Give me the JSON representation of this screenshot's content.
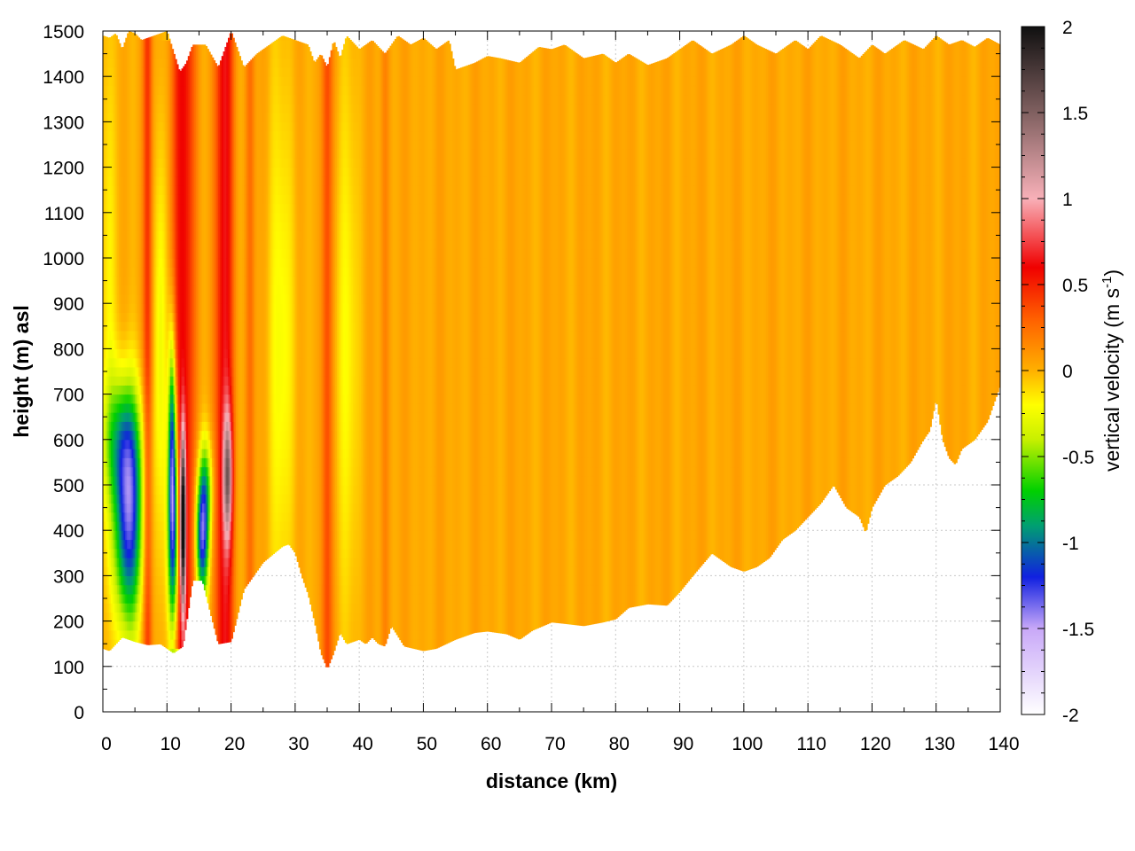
{
  "chart_data": {
    "type": "heatmap",
    "title": "",
    "xlabel": "distance (km)",
    "ylabel": "height (m) asl",
    "colorbar_label": {
      "text": "vertical velocity (m s",
      "superscript": "-1",
      "suffix": ")"
    },
    "xlim": [
      0,
      140
    ],
    "ylim": [
      0,
      1500
    ],
    "clim": [
      -2,
      2
    ],
    "x_ticks": [
      0,
      10,
      20,
      30,
      40,
      50,
      60,
      70,
      80,
      90,
      100,
      110,
      120,
      130,
      140
    ],
    "y_ticks": [
      0,
      100,
      200,
      300,
      400,
      500,
      600,
      700,
      800,
      900,
      1000,
      1100,
      1200,
      1300,
      1400,
      1500
    ],
    "colorbar_ticks": [
      "2",
      "1.5",
      "1",
      "0.5",
      "0",
      "-0.5",
      "-1",
      "-1.5",
      "-2"
    ],
    "grid": true,
    "colormap": [
      {
        "value": -2.0,
        "color": "#ffffff"
      },
      {
        "value": -1.5,
        "color": "#c8a8f8"
      },
      {
        "value": -1.2,
        "color": "#1020e0"
      },
      {
        "value": -0.9,
        "color": "#00a070"
      },
      {
        "value": -0.7,
        "color": "#00d000"
      },
      {
        "value": -0.4,
        "color": "#c8f000"
      },
      {
        "value": -0.2,
        "color": "#ffff00"
      },
      {
        "value": 0.0,
        "color": "#ffb000"
      },
      {
        "value": 0.3,
        "color": "#ff6000"
      },
      {
        "value": 0.6,
        "color": "#f00000"
      },
      {
        "value": 1.0,
        "color": "#f8b0b8"
      },
      {
        "value": 1.5,
        "color": "#806060"
      },
      {
        "value": 2.0,
        "color": "#101010"
      }
    ],
    "bottom_boundary": {
      "x": [
        0,
        1,
        3,
        5,
        7,
        9,
        11,
        12.5,
        14,
        15.5,
        17,
        18,
        20,
        22,
        25,
        28,
        29,
        30,
        31,
        32,
        33,
        34,
        35,
        36,
        37,
        38,
        40,
        41,
        42,
        43,
        44,
        45,
        47,
        50,
        52,
        55,
        58,
        60,
        63,
        65,
        67,
        70,
        72,
        75,
        78,
        80,
        82,
        85,
        88,
        90,
        92,
        95,
        98,
        100,
        102,
        104,
        106,
        108,
        110,
        112,
        114,
        116,
        118,
        119,
        120,
        122,
        124,
        126,
        128,
        129,
        130,
        131,
        132,
        133,
        134,
        136,
        138,
        140
      ],
      "y": [
        140,
        135,
        165,
        155,
        148,
        150,
        130,
        145,
        290,
        290,
        205,
        150,
        155,
        270,
        330,
        365,
        370,
        350,
        300,
        260,
        200,
        130,
        95,
        130,
        175,
        150,
        160,
        150,
        165,
        150,
        145,
        190,
        145,
        135,
        140,
        160,
        175,
        178,
        172,
        160,
        180,
        198,
        195,
        190,
        198,
        205,
        230,
        238,
        235,
        265,
        300,
        350,
        320,
        310,
        320,
        340,
        380,
        400,
        430,
        460,
        500,
        450,
        430,
        395,
        450,
        500,
        520,
        550,
        600,
        620,
        690,
        600,
        560,
        545,
        580,
        600,
        640,
        720
      ]
    },
    "top_boundary": {
      "x": [
        0,
        1,
        2,
        3,
        4,
        5,
        6,
        8,
        10,
        12,
        13,
        14,
        16,
        18,
        20,
        22,
        24,
        26,
        28,
        30,
        32,
        33,
        34,
        35,
        36,
        37,
        38,
        40,
        42,
        44,
        46,
        48,
        50,
        52,
        54,
        55,
        58,
        60,
        62,
        65,
        68,
        70,
        72,
        75,
        78,
        80,
        82,
        85,
        88,
        90,
        92,
        95,
        98,
        100,
        102,
        105,
        108,
        110,
        112,
        115,
        118,
        120,
        122,
        125,
        128,
        130,
        132,
        134,
        136,
        138,
        140
      ],
      "y": [
        1490,
        1485,
        1495,
        1460,
        1500,
        1495,
        1480,
        1490,
        1500,
        1410,
        1430,
        1470,
        1470,
        1420,
        1500,
        1420,
        1450,
        1470,
        1490,
        1480,
        1470,
        1430,
        1450,
        1420,
        1480,
        1440,
        1490,
        1460,
        1480,
        1450,
        1490,
        1470,
        1485,
        1460,
        1480,
        1415,
        1430,
        1445,
        1440,
        1430,
        1465,
        1460,
        1470,
        1440,
        1450,
        1430,
        1450,
        1425,
        1440,
        1460,
        1480,
        1450,
        1470,
        1490,
        1470,
        1450,
        1480,
        1460,
        1490,
        1470,
        1440,
        1470,
        1450,
        1480,
        1460,
        1490,
        1470,
        1480,
        1465,
        1485,
        1470
      ]
    },
    "features": [
      {
        "kind": "updraft_column",
        "x": 7,
        "width_km": 1.0,
        "peak": 0.4,
        "y_range": [
          150,
          1500
        ]
      },
      {
        "kind": "updraft_column",
        "x": 12.5,
        "width_km": 2.6,
        "peak": 0.55,
        "y_range": [
          140,
          1470
        ]
      },
      {
        "kind": "updraft_column",
        "x": 19,
        "width_km": 2.0,
        "peak": 0.6,
        "y_range": [
          150,
          1500
        ]
      },
      {
        "kind": "updraft_column",
        "x": 23,
        "width_km": 1.0,
        "peak": 0.2,
        "y_range": [
          200,
          1450
        ]
      },
      {
        "kind": "updraft_column",
        "x": 35,
        "width_km": 1.2,
        "peak": 0.35,
        "y_range": [
          95,
          1450
        ]
      },
      {
        "kind": "updraft_column",
        "x": 44,
        "width_km": 1.0,
        "peak": 0.15,
        "y_range": [
          150,
          1450
        ]
      },
      {
        "kind": "updraft_core",
        "x": 12.5,
        "y": 420,
        "width_km": 0.6,
        "height_m": 260,
        "peak": 1.8
      },
      {
        "kind": "updraft_core",
        "x": 19.5,
        "y": 520,
        "width_km": 1.0,
        "height_m": 200,
        "peak": 1.0
      },
      {
        "kind": "downdraft_core",
        "x": 4,
        "y": 420,
        "width_km": 3.0,
        "height_m": 320,
        "peak": -1.3
      },
      {
        "kind": "downdraft_core",
        "x": 11,
        "y": 400,
        "width_km": 1.2,
        "height_m": 350,
        "peak": -1.35
      },
      {
        "kind": "downdraft_core",
        "x": 15.5,
        "y": 380,
        "width_km": 1.4,
        "height_m": 180,
        "peak": -1.25
      },
      {
        "kind": "downdraft_band",
        "x": 10.8,
        "y": 620,
        "width_km": 0.8,
        "height_m": 330,
        "peak": -0.8
      },
      {
        "kind": "downdraft_band",
        "x": 3,
        "y": 600,
        "width_km": 4.0,
        "height_m": 200,
        "peak": -0.6
      },
      {
        "kind": "downdraft_band",
        "x": 16,
        "y": 500,
        "width_km": 1.5,
        "height_m": 150,
        "peak": -0.6
      },
      {
        "kind": "weak_downdraft",
        "x": 9,
        "y": 800,
        "width_km": 1.5,
        "height_m": 700,
        "peak": -0.3
      },
      {
        "kind": "weak_downdraft",
        "x": 28,
        "y": 800,
        "width_km": 3.0,
        "height_m": 900,
        "peak": -0.25
      },
      {
        "kind": "weak_downdraft",
        "x": 38,
        "y": 800,
        "width_km": 3.0,
        "height_m": 900,
        "peak": -0.2
      },
      {
        "kind": "weak_downdraft",
        "x": 1,
        "y": 900,
        "width_km": 1.5,
        "height_m": 1000,
        "peak": -0.25
      }
    ]
  }
}
